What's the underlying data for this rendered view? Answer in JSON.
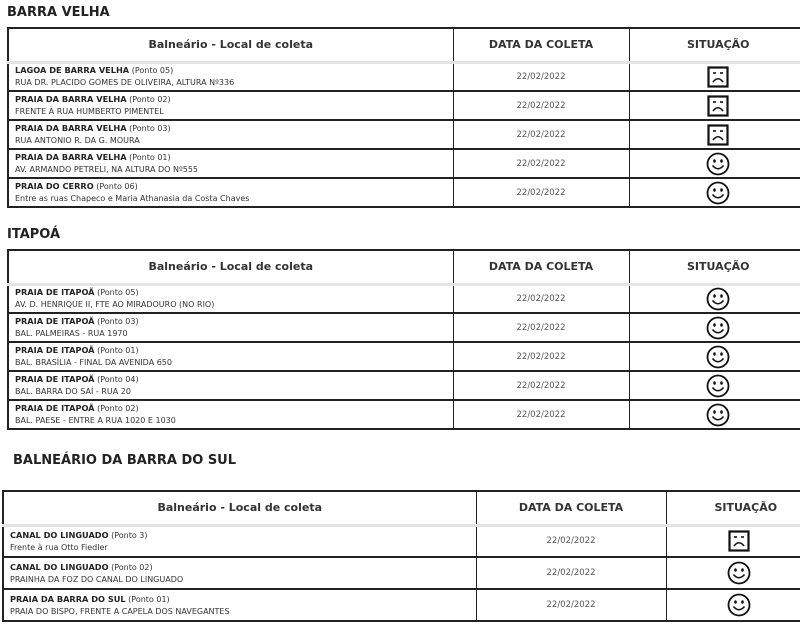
{
  "columns": {
    "location": "Balneário - Local de coleta",
    "date": "DATA DA COLETA",
    "status": "SITUAÇÃO"
  },
  "sections": [
    {
      "title": "BARRA VELHA",
      "rows": [
        {
          "name": "LAGOA DE BARRA VELHA",
          "point": "(Ponto 05)",
          "address": "RUA DR. PLACIDO GOMES DE OLIVEIRA, ALTURA Nº336",
          "date": "22/02/2022",
          "status": "sad-icon"
        },
        {
          "name": "PRAIA DA BARRA VELHA",
          "point": "(Ponto 02)",
          "address": "FRENTE À RUA HUMBERTO PIMENTEL",
          "date": "22/02/2022",
          "status": "sad-icon"
        },
        {
          "name": "PRAIA DA BARRA VELHA",
          "point": "(Ponto 03)",
          "address": "RUA ANTONIO R. DA G. MOURA",
          "date": "22/02/2022",
          "status": "sad-icon"
        },
        {
          "name": "PRAIA DA BARRA VELHA",
          "point": "(Ponto 01)",
          "address": "AV. ARMANDO PETRELI, NA ALTURA DO Nº555",
          "date": "22/02/2022",
          "status": "happy-icon"
        },
        {
          "name": "PRAIA DO CERRO",
          "point": "(Ponto 06)",
          "address": "Entre as ruas Chapeco e Maria Athanasia da Costa Chaves",
          "date": "22/02/2022",
          "status": "happy-icon"
        }
      ]
    },
    {
      "title": "ITAPOÁ",
      "rows": [
        {
          "name": "PRAIA DE ITAPOÃ",
          "point": "(Ponto 05)",
          "address": "AV. D. HENRIQUE II, FTE AO MIRADOURO (NO RIO)",
          "date": "22/02/2022",
          "status": "happy-icon"
        },
        {
          "name": "PRAIA DE ITAPOÃ",
          "point": "(Ponto 03)",
          "address": "BAL. PALMEIRAS - RUA 1970",
          "date": "22/02/2022",
          "status": "happy-icon"
        },
        {
          "name": "PRAIA DE ITAPOÃ",
          "point": "(Ponto 01)",
          "address": "BAL. BRASÍLIA - FINAL DA AVENIDA 650",
          "date": "22/02/2022",
          "status": "happy-icon"
        },
        {
          "name": "PRAIA DE ITAPOÃ",
          "point": "(Ponto 04)",
          "address": "BAL. BARRA DO SAÍ - RUA 20",
          "date": "22/02/2022",
          "status": "happy-icon"
        },
        {
          "name": "PRAIA DE ITAPOÃ",
          "point": "(Ponto 02)",
          "address": "BAL. PAESE - ENTRE A RUA 1020 E 1030",
          "date": "22/02/2022",
          "status": "happy-icon"
        }
      ]
    },
    {
      "title": "BALNEÁRIO DA BARRA DO SUL",
      "rows": [
        {
          "name": "CANAL DO LINGUADO",
          "point": "(Ponto 3)",
          "address": "Frente à rua Otto Fiedler",
          "date": "22/02/2022",
          "status": "sad-icon"
        },
        {
          "name": "CANAL DO LINGUADO",
          "point": "(Ponto 02)",
          "address": "PRAINHA DA FOZ DO CANAL DO LINGUADO",
          "date": "22/02/2022",
          "status": "happy-icon"
        },
        {
          "name": "PRAIA DA BARRA DO SUL",
          "point": "(Ponto 01)",
          "address": "PRAIA DO BISPO, FRENTE A CAPELA DOS NAVEGANTES",
          "date": "22/02/2022",
          "status": "happy-icon"
        }
      ]
    }
  ]
}
